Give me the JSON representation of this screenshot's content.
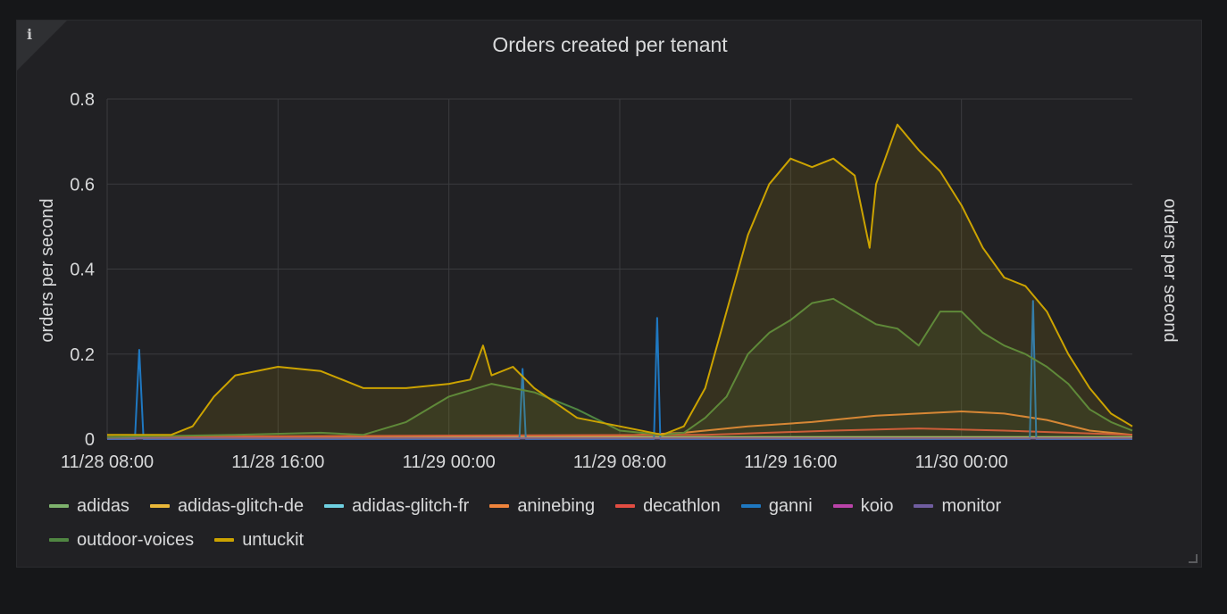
{
  "panel": {
    "title": "Orders created per tenant",
    "info_icon": "info-icon"
  },
  "chart_data": {
    "type": "line",
    "title": "Orders created per tenant",
    "ylabel": "orders per second",
    "ylabel_right": "orders per second",
    "ylim": [
      0,
      0.8
    ],
    "y_ticks": [
      "0",
      "0.2",
      "0.4",
      "0.6",
      "0.8"
    ],
    "x_ticks": [
      "11/28 08:00",
      "11/28 16:00",
      "11/29 00:00",
      "11/29 08:00",
      "11/29 16:00",
      "11/30 00:00"
    ],
    "x_unit": "hours since 11/28 08:00",
    "x_range": [
      0,
      48
    ],
    "grid": true,
    "legend_position": "bottom",
    "series": [
      {
        "name": "adidas",
        "color": "#7eb26d",
        "area": false,
        "points": [
          [
            0,
            0.005
          ],
          [
            48,
            0.005
          ]
        ]
      },
      {
        "name": "adidas-glitch-de",
        "color": "#eab839",
        "area": false,
        "points": [
          [
            0,
            0.004
          ],
          [
            48,
            0.004
          ]
        ]
      },
      {
        "name": "adidas-glitch-fr",
        "color": "#6ed0e0",
        "area": false,
        "points": [
          [
            0,
            0.003
          ],
          [
            48,
            0.003
          ]
        ]
      },
      {
        "name": "aninebing",
        "color": "#ef843c",
        "area": false,
        "points": [
          [
            0,
            0.005
          ],
          [
            24,
            0.008
          ],
          [
            27,
            0.015
          ],
          [
            30,
            0.03
          ],
          [
            33,
            0.04
          ],
          [
            36,
            0.055
          ],
          [
            38,
            0.06
          ],
          [
            40,
            0.065
          ],
          [
            42,
            0.06
          ],
          [
            44,
            0.045
          ],
          [
            46,
            0.02
          ],
          [
            48,
            0.01
          ]
        ]
      },
      {
        "name": "decathlon",
        "color": "#e24d42",
        "area": false,
        "points": [
          [
            0,
            0.005
          ],
          [
            14,
            0.008
          ],
          [
            28,
            0.01
          ],
          [
            34,
            0.02
          ],
          [
            38,
            0.025
          ],
          [
            42,
            0.02
          ],
          [
            48,
            0.01
          ]
        ]
      },
      {
        "name": "ganni",
        "color": "#1f78c1",
        "area": false,
        "points": [
          [
            0,
            0
          ],
          [
            1.3,
            0
          ],
          [
            1.5,
            0.21
          ],
          [
            1.7,
            0
          ],
          [
            19.3,
            0
          ],
          [
            19.45,
            0.165
          ],
          [
            19.6,
            0
          ],
          [
            25.6,
            0
          ],
          [
            25.75,
            0.285
          ],
          [
            25.9,
            0
          ],
          [
            43.2,
            0
          ],
          [
            43.35,
            0.325
          ],
          [
            43.5,
            0
          ],
          [
            48,
            0
          ]
        ]
      },
      {
        "name": "koio",
        "color": "#ba43a9",
        "area": false,
        "points": [
          [
            0,
            0.002
          ],
          [
            48,
            0.002
          ]
        ]
      },
      {
        "name": "monitor",
        "color": "#705da0",
        "area": false,
        "points": [
          [
            0,
            0.001
          ],
          [
            48,
            0.001
          ]
        ]
      },
      {
        "name": "outdoor-voices",
        "color": "#508642",
        "area": true,
        "points": [
          [
            0,
            0.005
          ],
          [
            6,
            0.01
          ],
          [
            10,
            0.015
          ],
          [
            12,
            0.01
          ],
          [
            14,
            0.04
          ],
          [
            16,
            0.1
          ],
          [
            18,
            0.13
          ],
          [
            20,
            0.11
          ],
          [
            22,
            0.07
          ],
          [
            24,
            0.02
          ],
          [
            26,
            0.01
          ],
          [
            27,
            0.015
          ],
          [
            28,
            0.05
          ],
          [
            29,
            0.1
          ],
          [
            30,
            0.2
          ],
          [
            31,
            0.25
          ],
          [
            32,
            0.28
          ],
          [
            33,
            0.32
          ],
          [
            34,
            0.33
          ],
          [
            35,
            0.3
          ],
          [
            36,
            0.27
          ],
          [
            37,
            0.26
          ],
          [
            38,
            0.22
          ],
          [
            39,
            0.3
          ],
          [
            40,
            0.3
          ],
          [
            41,
            0.25
          ],
          [
            42,
            0.22
          ],
          [
            43,
            0.2
          ],
          [
            44,
            0.17
          ],
          [
            45,
            0.13
          ],
          [
            46,
            0.07
          ],
          [
            47,
            0.04
          ],
          [
            48,
            0.02
          ]
        ]
      },
      {
        "name": "untuckit",
        "color": "#cca300",
        "area": true,
        "points": [
          [
            0,
            0.01
          ],
          [
            3,
            0.01
          ],
          [
            4,
            0.03
          ],
          [
            5,
            0.1
          ],
          [
            6,
            0.15
          ],
          [
            8,
            0.17
          ],
          [
            10,
            0.16
          ],
          [
            12,
            0.12
          ],
          [
            14,
            0.12
          ],
          [
            16,
            0.13
          ],
          [
            17,
            0.14
          ],
          [
            17.6,
            0.22
          ],
          [
            18,
            0.15
          ],
          [
            19,
            0.17
          ],
          [
            20,
            0.12
          ],
          [
            22,
            0.05
          ],
          [
            24,
            0.03
          ],
          [
            26,
            0.01
          ],
          [
            27,
            0.03
          ],
          [
            28,
            0.12
          ],
          [
            29,
            0.3
          ],
          [
            30,
            0.48
          ],
          [
            31,
            0.6
          ],
          [
            32,
            0.66
          ],
          [
            33,
            0.64
          ],
          [
            34,
            0.66
          ],
          [
            35,
            0.62
          ],
          [
            35.7,
            0.45
          ],
          [
            36,
            0.6
          ],
          [
            37,
            0.74
          ],
          [
            38,
            0.68
          ],
          [
            39,
            0.63
          ],
          [
            40,
            0.55
          ],
          [
            41,
            0.45
          ],
          [
            42,
            0.38
          ],
          [
            43,
            0.36
          ],
          [
            44,
            0.3
          ],
          [
            45,
            0.2
          ],
          [
            46,
            0.12
          ],
          [
            47,
            0.06
          ],
          [
            48,
            0.03
          ]
        ]
      }
    ]
  }
}
